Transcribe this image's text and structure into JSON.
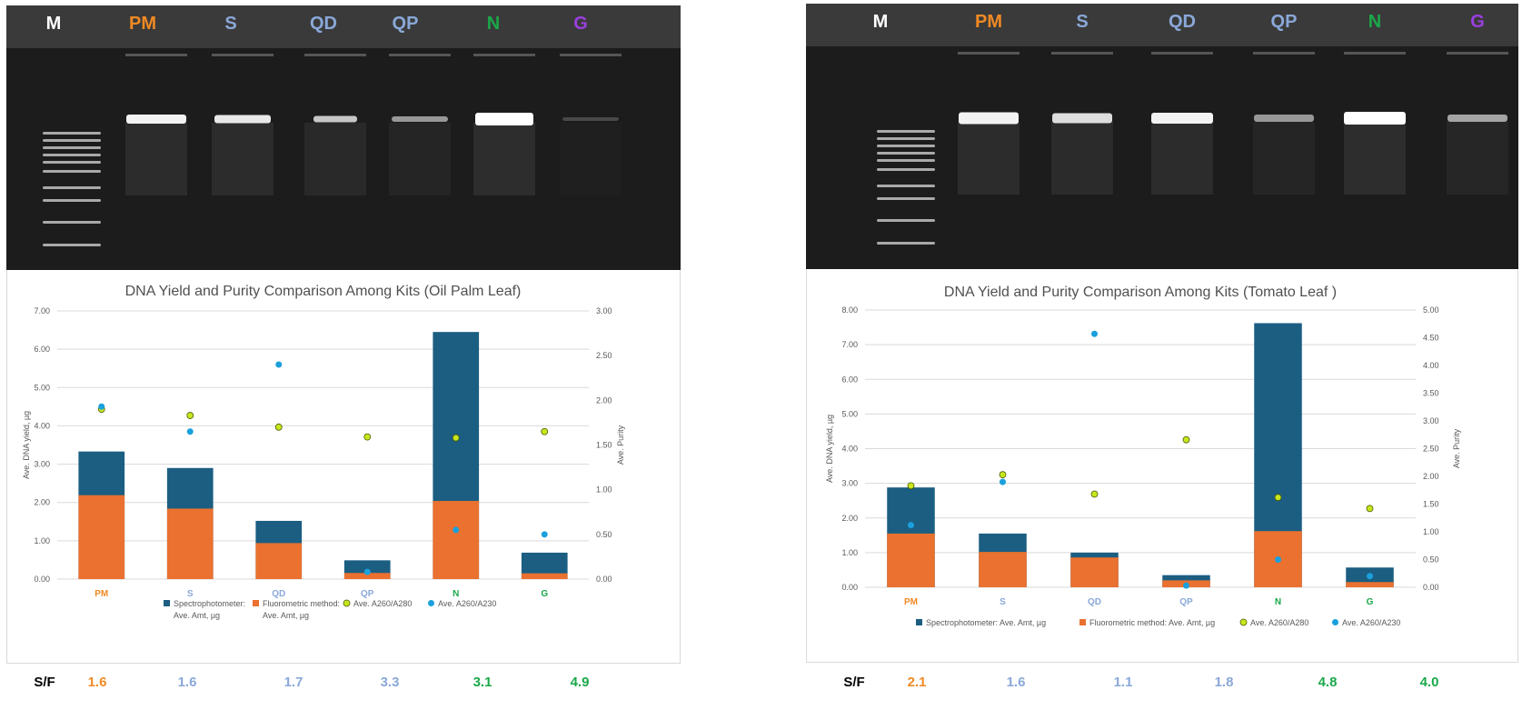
{
  "colors": {
    "PM": "#f08a24",
    "S": "#8aa8d8",
    "QD": "#8aa8d8",
    "QP": "#8aa8d8",
    "N": "#1aa84a",
    "G": "#9b3fe0",
    "M": "#ffffff",
    "spectro": "#1b5e82",
    "fluoro": "#ea7130",
    "a280": "#c8e61e",
    "a230": "#1aa0dc"
  },
  "panels": [
    {
      "lanes": [
        "M",
        "PM",
        "S",
        "QD",
        "QP",
        "N",
        "G"
      ],
      "sf_label": "S/F",
      "sf_values": [
        "1.6",
        "1.6",
        "1.7",
        "3.3",
        "3.1",
        "4.9"
      ],
      "legend": {
        "spectro_line1": "Spectrophotometer:",
        "spectro_line2": "Ave. Amt, µg",
        "fluoro_line1": "Fluorometric method:",
        "fluoro_line2": "Ave. Amt, µg",
        "a280": "Ave. A260/A280",
        "a230": "Ave. A260/A230"
      }
    },
    {
      "lanes": [
        "M",
        "PM",
        "S",
        "QD",
        "QP",
        "N",
        "G"
      ],
      "sf_label": "S/F",
      "sf_values": [
        "2.1",
        "1.6",
        "1.1",
        "1.8",
        "4.8",
        "4.0"
      ],
      "legend": {
        "spectro": "Spectrophotometer: Ave. Amt, µg",
        "fluoro": "Fluorometric method: Ave. Amt, µg",
        "a280": "Ave. A260/A280",
        "a230": "Ave. A260/A230"
      }
    }
  ],
  "chart_data": [
    {
      "type": "bar",
      "title": "DNA Yield and Purity Comparison Among Kits (Oil Palm Leaf)",
      "categories": [
        "PM",
        "S",
        "QD",
        "QP",
        "N",
        "G"
      ],
      "ylabel": "Ave. DNA yield, µg",
      "y2label": "Ave. Purity",
      "ylim": [
        0,
        7
      ],
      "y2lim": [
        0,
        3
      ],
      "yticks": [
        "0.00",
        "1.00",
        "2.00",
        "3.00",
        "4.00",
        "5.00",
        "6.00",
        "7.00"
      ],
      "y2ticks": [
        "0.00",
        "0.50",
        "1.00",
        "1.50",
        "2.00",
        "2.50",
        "3.00"
      ],
      "series": [
        {
          "name": "Spectrophotometer: Ave. Amt, µg",
          "kind": "bar",
          "values": [
            3.33,
            2.9,
            1.52,
            0.49,
            6.45,
            0.69
          ]
        },
        {
          "name": "Fluorometric method: Ave. Amt, µg",
          "kind": "bar",
          "values": [
            2.19,
            1.84,
            0.94,
            0.16,
            2.04,
            0.15
          ]
        },
        {
          "name": "Ave. A260/A280",
          "kind": "scatter",
          "axis": "y2",
          "values": [
            1.9,
            1.83,
            1.7,
            1.59,
            1.58,
            1.65
          ]
        },
        {
          "name": "Ave. A260/A230",
          "kind": "scatter",
          "axis": "y2",
          "values": [
            1.93,
            1.65,
            2.4,
            0.08,
            0.55,
            0.5
          ]
        }
      ]
    },
    {
      "type": "bar",
      "title": "DNA Yield and Purity Comparison Among Kits (Tomato Leaf )",
      "categories": [
        "PM",
        "S",
        "QD",
        "QP",
        "N",
        "G"
      ],
      "ylabel": "Ave. DNA yield, µg",
      "y2label": "Ave. Purity",
      "ylim": [
        0,
        8
      ],
      "y2lim": [
        0,
        5
      ],
      "yticks": [
        "0.00",
        "1.00",
        "2.00",
        "3.00",
        "4.00",
        "5.00",
        "6.00",
        "7.00",
        "8.00"
      ],
      "y2ticks": [
        "0.00",
        "0.50",
        "1.00",
        "1.50",
        "2.00",
        "2.50",
        "3.00",
        "3.50",
        "4.00",
        "4.50",
        "5.00"
      ],
      "series": [
        {
          "name": "Spectrophotometer: Ave. Amt, µg",
          "kind": "bar",
          "values": [
            2.88,
            1.55,
            1.0,
            0.35,
            7.62,
            0.57
          ]
        },
        {
          "name": "Fluorometric method: Ave. Amt, µg",
          "kind": "bar",
          "values": [
            1.55,
            1.02,
            0.86,
            0.2,
            1.62,
            0.15
          ]
        },
        {
          "name": "Ave. A260/A280",
          "kind": "scatter",
          "axis": "y2",
          "values": [
            1.83,
            2.03,
            1.68,
            2.66,
            1.62,
            1.42
          ]
        },
        {
          "name": "Ave. A260/A230",
          "kind": "scatter",
          "axis": "y2",
          "values": [
            1.12,
            1.9,
            4.57,
            0.03,
            0.5,
            0.2
          ]
        }
      ]
    }
  ]
}
